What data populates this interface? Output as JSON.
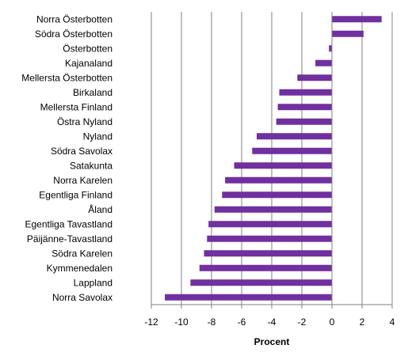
{
  "chart_data": {
    "type": "bar",
    "orientation": "horizontal",
    "categories": [
      "Norra Österbotten",
      "Södra Österbotten",
      "Österbotten",
      "Kajanaland",
      "Mellersta Österbotten",
      "Birkaland",
      "Mellersta Finland",
      "Östra Nyland",
      "Nyland",
      "Södra Savolax",
      "Satakunta",
      "Norra Karelen",
      "Egentliga Finland",
      "Åland",
      "Egentliga Tavastland",
      "Päijänne-Tavastland",
      "Södra Karelen",
      "Kymmenedalen",
      "Lappland",
      "Norra Savolax"
    ],
    "values": [
      3.3,
      2.1,
      -0.2,
      -1.1,
      -2.3,
      -3.5,
      -3.6,
      -3.7,
      -5.0,
      -5.3,
      -6.5,
      -7.1,
      -7.3,
      -7.8,
      -8.2,
      -8.3,
      -8.5,
      -8.8,
      -9.4,
      -11.1
    ],
    "xlabel": "Procent",
    "ylabel": "",
    "xlim": [
      -12,
      4
    ],
    "ticks": [
      "-12",
      "-10",
      "-8",
      "-6",
      "-4",
      "-2",
      "0",
      "2",
      "4"
    ],
    "grid": "vertical",
    "legend": "none",
    "colors": {
      "bar": "#7030A0",
      "grid": "#808080",
      "axis": "#808080"
    }
  }
}
